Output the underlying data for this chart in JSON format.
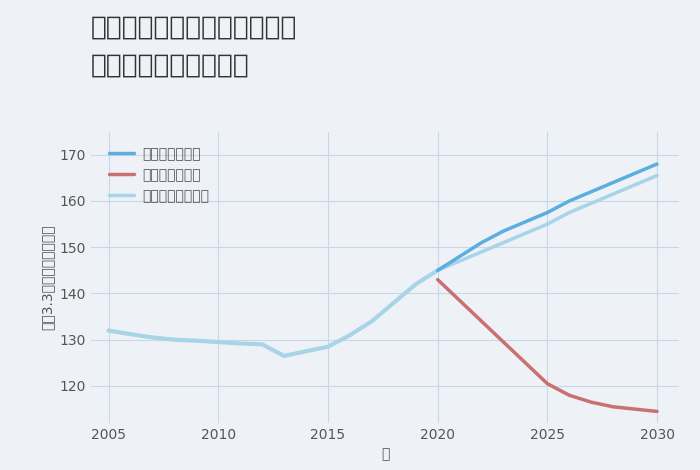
{
  "title_line1": "兵庫県西宮市上ヶ原七番町の",
  "title_line2": "中古戸建ての価格推移",
  "xlabel": "年",
  "ylabel": "坪（3.3㎡）単価（万円）",
  "background_color": "#eef2f7",
  "plot_bg_color": "#eef2f7",
  "ylim": [
    112,
    175
  ],
  "xlim": [
    2004.2,
    2031
  ],
  "yticks": [
    120,
    130,
    140,
    150,
    160,
    170
  ],
  "xticks": [
    2005,
    2010,
    2015,
    2020,
    2025,
    2030
  ],
  "history_years": [
    2005,
    2006,
    2007,
    2008,
    2009,
    2010,
    2011,
    2012,
    2013,
    2014,
    2015,
    2016,
    2017,
    2018,
    2019,
    2020
  ],
  "history_values": [
    132,
    131.2,
    130.5,
    130,
    129.8,
    129.5,
    129.2,
    129.0,
    126.5,
    127.5,
    128.5,
    131,
    134,
    138,
    142,
    145
  ],
  "good_years": [
    2020,
    2021,
    2022,
    2023,
    2024,
    2025,
    2026,
    2027,
    2028,
    2029,
    2030
  ],
  "good_values": [
    145,
    148,
    151,
    153.5,
    155.5,
    157.5,
    160,
    162,
    164,
    166,
    168
  ],
  "normal_years": [
    2020,
    2021,
    2022,
    2023,
    2024,
    2025,
    2026,
    2027,
    2028,
    2029,
    2030
  ],
  "normal_values": [
    145,
    147,
    149,
    151,
    153,
    155,
    157.5,
    159.5,
    161.5,
    163.5,
    165.5
  ],
  "bad_years": [
    2020,
    2021,
    2022,
    2023,
    2024,
    2025,
    2026,
    2027,
    2028,
    2029,
    2030
  ],
  "bad_values": [
    143,
    138.5,
    134,
    129.5,
    125,
    120.5,
    118,
    116.5,
    115.5,
    115,
    114.5
  ],
  "color_good": "#5aaee0",
  "color_normal": "#a8d4e8",
  "color_bad": "#c97070",
  "color_history": "#a8d4e8",
  "legend_good": "グッドシナリオ",
  "legend_bad": "バッドシナリオ",
  "legend_normal": "ノーマルシナリオ",
  "title_fontsize": 19,
  "label_fontsize": 10,
  "tick_fontsize": 10,
  "legend_fontsize": 10
}
